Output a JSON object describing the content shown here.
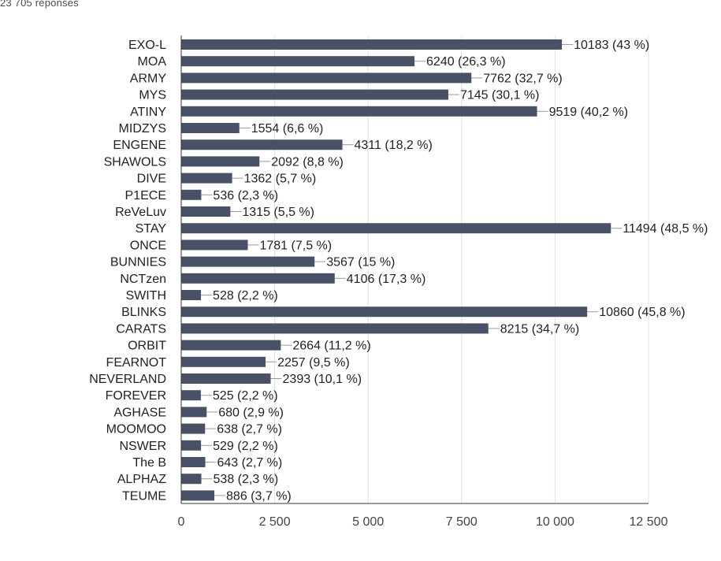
{
  "header": {
    "response_count": "23 705 réponses"
  },
  "colors": {
    "bar": "#485165",
    "grid": "#e2e2e2",
    "axis": "#333333",
    "leader": "#9a9a9a"
  },
  "chart_data": {
    "type": "bar",
    "orientation": "horizontal",
    "title": "",
    "xlabel": "",
    "ylabel": "",
    "xlim": [
      0,
      12500
    ],
    "grid": true,
    "x_ticks": [
      0,
      2500,
      5000,
      7500,
      10000,
      12500
    ],
    "x_tick_labels": [
      "0",
      "2 500",
      "5 000",
      "7 500",
      "10 000",
      "12 500"
    ],
    "categories": [
      "EXO-L",
      "MOA",
      "ARMY",
      "MYS",
      "ATINY",
      "MIDZYS",
      "ENGENE",
      "SHAWOLS",
      "DIVE",
      "P1ECE",
      "ReVeLuv",
      "STAY",
      "ONCE",
      "BUNNIES",
      "NCTzen",
      "SWITH",
      "BLINKS",
      "CARATS",
      "ORBIT",
      "FEARNOT",
      "NEVERLAND",
      "FOREVER",
      "AGHASE",
      "MOOMOO",
      "NSWER",
      "The B",
      "ALPHAZ",
      "TEUME"
    ],
    "values": [
      10183,
      6240,
      7762,
      7145,
      9519,
      1554,
      4311,
      2092,
      1362,
      536,
      1315,
      11494,
      1781,
      3567,
      4106,
      528,
      10860,
      8215,
      2664,
      2257,
      2393,
      525,
      680,
      638,
      529,
      643,
      538,
      886
    ],
    "data_labels": [
      "10183 (43 %)",
      "6240 (26,3 %)",
      "7762 (32,7 %)",
      "7145 (30,1 %)",
      "9519 (40,2 %)",
      "1554 (6,6 %)",
      "4311 (18,2 %)",
      "2092 (8,8 %)",
      "1362 (5,7 %)",
      "536 (2,3 %)",
      "1315 (5,5 %)",
      "11494 (48,5 %)",
      "1781 (7,5 %)",
      "3567 (15 %)",
      "4106 (17,3 %)",
      "528 (2,2 %)",
      "10860 (45,8 %)",
      "8215 (34,7 %)",
      "2664 (11,2 %)",
      "2257 (9,5 %)",
      "2393 (10,1 %)",
      "525 (2,2 %)",
      "680 (2,9 %)",
      "638 (2,7 %)",
      "529 (2,2 %)",
      "643 (2,7 %)",
      "538 (2,3 %)",
      "886 (3,7 %)"
    ]
  }
}
